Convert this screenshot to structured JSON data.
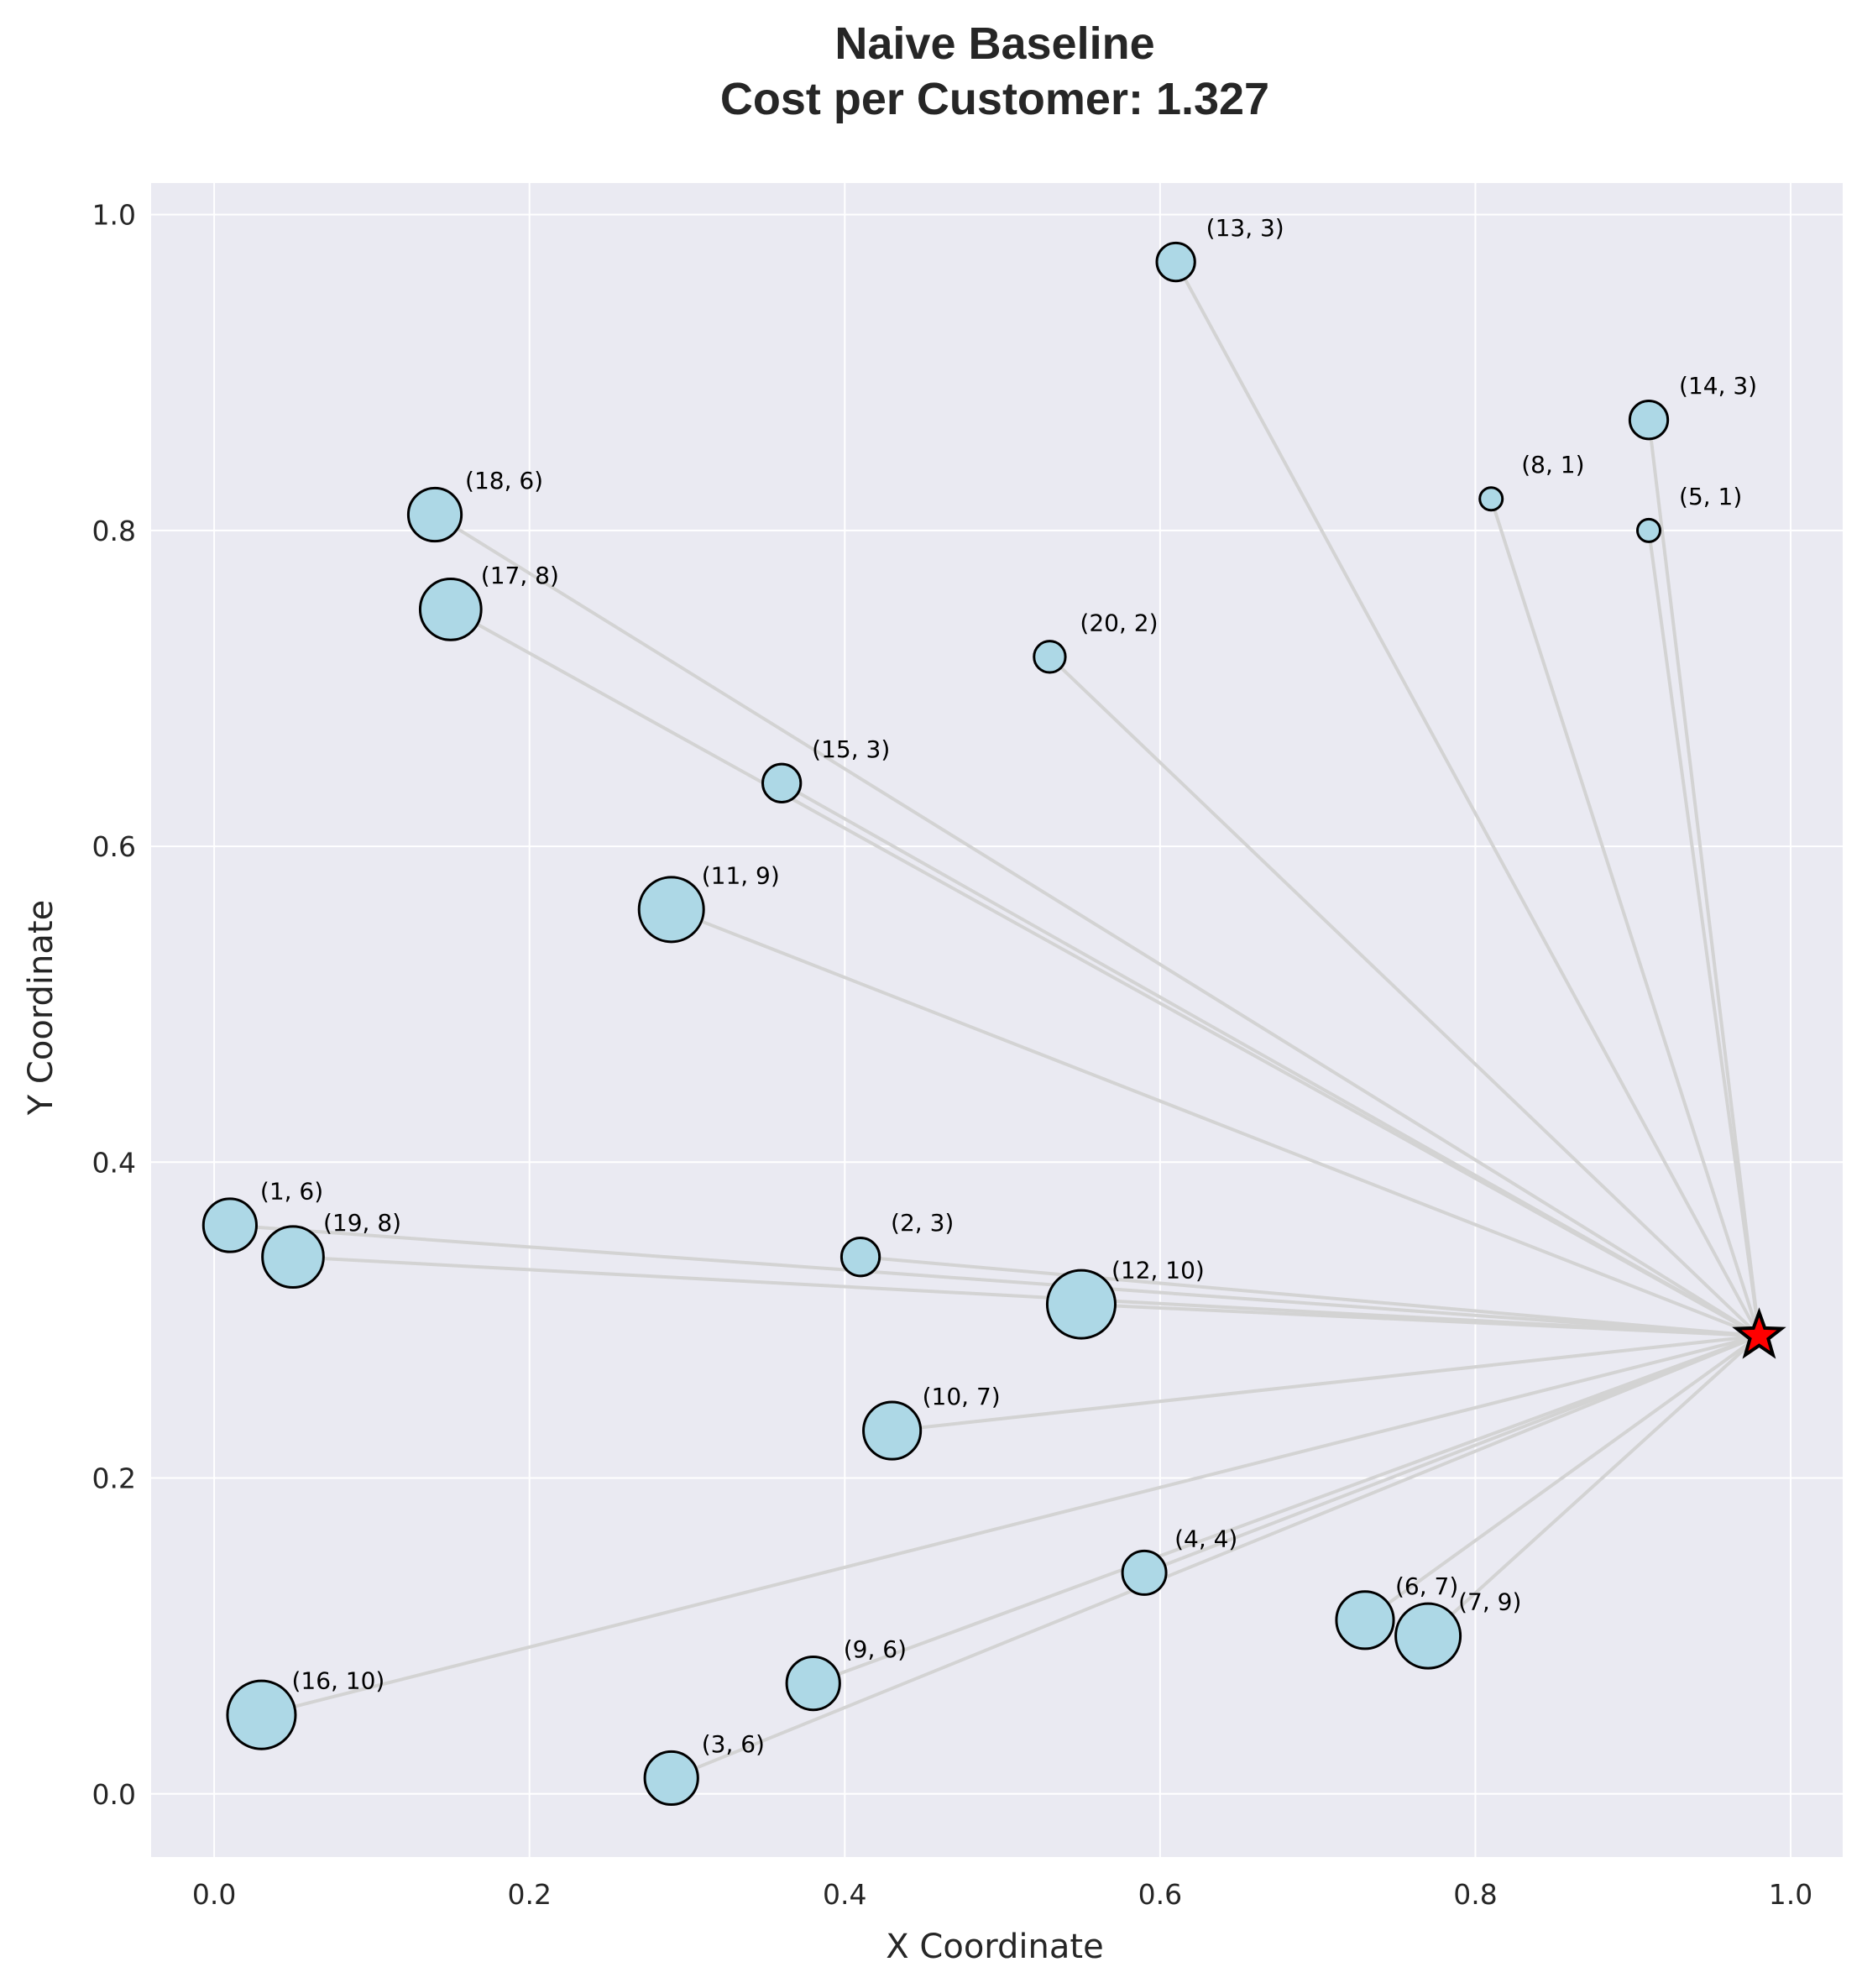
{
  "chart_data": {
    "type": "scatter",
    "title_line1": "Naive Baseline",
    "title_line2": "Cost per Customer: 1.327",
    "xlabel": "X Coordinate",
    "ylabel": "Y Coordinate",
    "xlim": [
      -0.04,
      1.033
    ],
    "ylim": [
      -0.04,
      1.02
    ],
    "xticks": [
      0.0,
      0.2,
      0.4,
      0.6,
      0.8,
      1.0
    ],
    "yticks": [
      0.0,
      0.2,
      0.4,
      0.6,
      0.8,
      1.0
    ],
    "xtick_labels": [
      "0.0",
      "0.2",
      "0.4",
      "0.6",
      "0.8",
      "1.0"
    ],
    "ytick_labels": [
      "0.0",
      "0.2",
      "0.4",
      "0.6",
      "0.8",
      "1.0"
    ],
    "grid": true,
    "colors": {
      "background": "#eaeaf2",
      "grid": "#ffffff",
      "route": "#d3d3d3",
      "customer_fill": "#add8e6",
      "customer_edge": "#000000",
      "depot": "#ff0000"
    },
    "depot": {
      "x": 0.98,
      "y": 0.29
    },
    "customers": [
      {
        "label": "(1, 6)",
        "id": 1,
        "demand": 6,
        "x": 0.01,
        "y": 0.36
      },
      {
        "label": "(2, 3)",
        "id": 2,
        "demand": 3,
        "x": 0.41,
        "y": 0.34
      },
      {
        "label": "(3, 6)",
        "id": 3,
        "demand": 6,
        "x": 0.29,
        "y": 0.01
      },
      {
        "label": "(4, 4)",
        "id": 4,
        "demand": 4,
        "x": 0.59,
        "y": 0.14
      },
      {
        "label": "(5, 1)",
        "id": 5,
        "demand": 1,
        "x": 0.91,
        "y": 0.8
      },
      {
        "label": "(6, 7)",
        "id": 6,
        "demand": 7,
        "x": 0.73,
        "y": 0.11
      },
      {
        "label": "(7, 9)",
        "id": 7,
        "demand": 9,
        "x": 0.77,
        "y": 0.1
      },
      {
        "label": "(8, 1)",
        "id": 8,
        "demand": 1,
        "x": 0.81,
        "y": 0.82
      },
      {
        "label": "(9, 6)",
        "id": 9,
        "demand": 6,
        "x": 0.38,
        "y": 0.07
      },
      {
        "label": "(10, 7)",
        "id": 10,
        "demand": 7,
        "x": 0.43,
        "y": 0.23
      },
      {
        "label": "(11, 9)",
        "id": 11,
        "demand": 9,
        "x": 0.29,
        "y": 0.56
      },
      {
        "label": "(12, 10)",
        "id": 12,
        "demand": 10,
        "x": 0.55,
        "y": 0.31
      },
      {
        "label": "(13, 3)",
        "id": 13,
        "demand": 3,
        "x": 0.61,
        "y": 0.97
      },
      {
        "label": "(14, 3)",
        "id": 14,
        "demand": 3,
        "x": 0.91,
        "y": 0.87
      },
      {
        "label": "(15, 3)",
        "id": 15,
        "demand": 3,
        "x": 0.36,
        "y": 0.64
      },
      {
        "label": "(16, 10)",
        "id": 16,
        "demand": 10,
        "x": 0.03,
        "y": 0.05
      },
      {
        "label": "(17, 8)",
        "id": 17,
        "demand": 8,
        "x": 0.15,
        "y": 0.75
      },
      {
        "label": "(18, 6)",
        "id": 18,
        "demand": 6,
        "x": 0.14,
        "y": 0.81
      },
      {
        "label": "(19, 8)",
        "id": 19,
        "demand": 8,
        "x": 0.05,
        "y": 0.34
      },
      {
        "label": "(20, 2)",
        "id": 20,
        "demand": 2,
        "x": 0.53,
        "y": 0.72
      }
    ]
  }
}
